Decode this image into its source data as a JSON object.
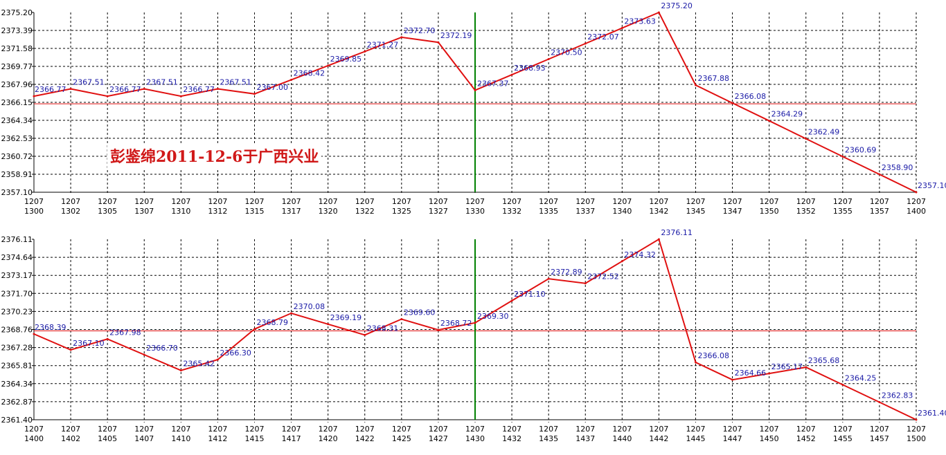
{
  "annotation": "彭鉴绵2011-12-6于广西兴业",
  "colors": {
    "line": "#e01010",
    "reference": "#e01010",
    "midline": "#008000",
    "labels": "#1a1aa6",
    "grid": "#000000"
  },
  "chart_data": [
    {
      "type": "line",
      "title": "",
      "xlabel": "",
      "ylabel": "",
      "grid": true,
      "ylim": [
        2357.1,
        2375.2
      ],
      "y_ticks": [
        "2375.20",
        "2373.39",
        "2371.58",
        "2369.77",
        "2367.96",
        "2366.15",
        "2364.34",
        "2362.53",
        "2360.72",
        "2358.91",
        "2357.10"
      ],
      "x_ticks": [
        [
          "1207",
          "1300"
        ],
        [
          "1207",
          "1302"
        ],
        [
          "1207",
          "1305"
        ],
        [
          "1207",
          "1307"
        ],
        [
          "1207",
          "1310"
        ],
        [
          "1207",
          "1312"
        ],
        [
          "1207",
          "1315"
        ],
        [
          "1207",
          "1317"
        ],
        [
          "1207",
          "1320"
        ],
        [
          "1207",
          "1322"
        ],
        [
          "1207",
          "1325"
        ],
        [
          "1207",
          "1327"
        ],
        [
          "1207",
          "1330"
        ],
        [
          "1207",
          "1332"
        ],
        [
          "1207",
          "1335"
        ],
        [
          "1207",
          "1337"
        ],
        [
          "1207",
          "1340"
        ],
        [
          "1207",
          "1342"
        ],
        [
          "1207",
          "1345"
        ],
        [
          "1207",
          "1347"
        ],
        [
          "1207",
          "1350"
        ],
        [
          "1207",
          "1352"
        ],
        [
          "1207",
          "1355"
        ],
        [
          "1207",
          "1357"
        ],
        [
          "1207",
          "1400"
        ]
      ],
      "values": [
        2366.77,
        2367.51,
        2366.77,
        2367.51,
        2366.77,
        2367.51,
        2367.0,
        2368.42,
        2369.85,
        2371.27,
        2372.7,
        2372.19,
        2367.37,
        2368.93,
        2370.5,
        2372.07,
        2373.63,
        2375.2,
        2367.88,
        2366.08,
        2364.29,
        2362.49,
        2360.69,
        2358.9,
        2357.1
      ],
      "labels": [
        "2366.77",
        "2367.51",
        "2366.77",
        "2367.51",
        "2366.77",
        "2367.51",
        "2367.00",
        "2368.42",
        "2369.85",
        "2371.27",
        "2372.70",
        "2372.19",
        "2367.37",
        "2368.93",
        "2370.50",
        "2372.07",
        "2373.63",
        "2375.20",
        "2367.88",
        "2366.08",
        "2364.29",
        "2362.49",
        "2360.69",
        "2358.90",
        "2357.10"
      ],
      "reference_line": 2366.0,
      "vertical_marker_index": 12
    },
    {
      "type": "line",
      "title": "",
      "xlabel": "",
      "ylabel": "",
      "grid": true,
      "ylim": [
        2361.4,
        2376.11
      ],
      "y_ticks": [
        "2376.11",
        "2374.64",
        "2373.17",
        "2371.70",
        "2370.23",
        "2368.76",
        "2367.28",
        "2365.81",
        "2364.34",
        "2362.87",
        "2361.40"
      ],
      "x_ticks": [
        [
          "1207",
          "1400"
        ],
        [
          "1207",
          "1402"
        ],
        [
          "1207",
          "1405"
        ],
        [
          "1207",
          "1407"
        ],
        [
          "1207",
          "1410"
        ],
        [
          "1207",
          "1412"
        ],
        [
          "1207",
          "1415"
        ],
        [
          "1207",
          "1417"
        ],
        [
          "1207",
          "1420"
        ],
        [
          "1207",
          "1422"
        ],
        [
          "1207",
          "1425"
        ],
        [
          "1207",
          "1427"
        ],
        [
          "1207",
          "1430"
        ],
        [
          "1207",
          "1432"
        ],
        [
          "1207",
          "1435"
        ],
        [
          "1207",
          "1437"
        ],
        [
          "1207",
          "1440"
        ],
        [
          "1207",
          "1442"
        ],
        [
          "1207",
          "1445"
        ],
        [
          "1207",
          "1447"
        ],
        [
          "1207",
          "1450"
        ],
        [
          "1207",
          "1452"
        ],
        [
          "1207",
          "1455"
        ],
        [
          "1207",
          "1457"
        ],
        [
          "1207",
          "1500"
        ]
      ],
      "values": [
        2368.39,
        2367.1,
        2367.98,
        2366.7,
        2365.42,
        2366.3,
        2368.79,
        2370.08,
        2369.19,
        2368.31,
        2369.6,
        2368.72,
        2369.3,
        2371.1,
        2372.89,
        2372.52,
        2374.32,
        2376.11,
        2366.08,
        2364.66,
        2365.17,
        2365.68,
        2364.25,
        2362.83,
        2361.4
      ],
      "labels": [
        "2368.39",
        "2367.10",
        "2367.98",
        "2366.70",
        "2365.42",
        "2366.30",
        "2368.79",
        "2370.08",
        "2369.19",
        "2368.31",
        "2369.60",
        "2368.72",
        "2369.30",
        "2371.10",
        "2372.89",
        "2372.52",
        "2374.32",
        "2376.11",
        "2366.08",
        "2364.66",
        "2365.17",
        "2365.68",
        "2364.25",
        "2362.83",
        "2361.40"
      ],
      "reference_line": 2368.64,
      "vertical_marker_index": 12
    }
  ]
}
